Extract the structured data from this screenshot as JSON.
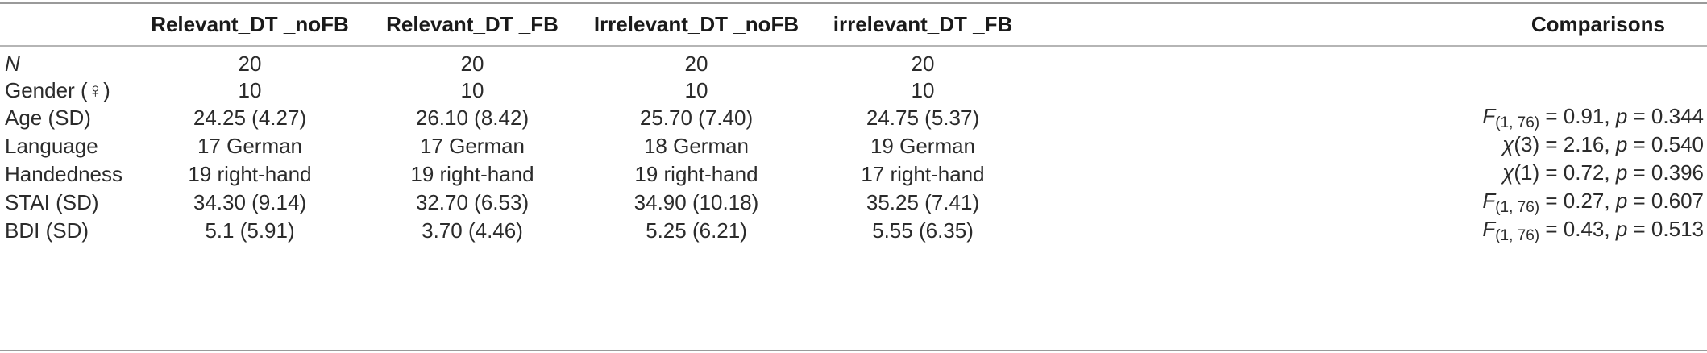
{
  "columns": [
    "",
    "Relevant_DT _noFB",
    "Relevant_DT _FB",
    "Irrelevant_DT _noFB",
    "irrelevant_DT _FB",
    "Comparisons"
  ],
  "rows": [
    {
      "label": "N",
      "values": [
        "20",
        "20",
        "20",
        "20"
      ],
      "comparison": null
    },
    {
      "label": "Gender (♀)",
      "values": [
        "10",
        "10",
        "10",
        "10"
      ],
      "comparison": null
    },
    {
      "label": "Age (SD)",
      "values": [
        "24.25 (4.27)",
        "26.10 (8.42)",
        "25.70 (7.40)",
        "24.75 (5.37)"
      ],
      "comparison": {
        "stat": "F",
        "sub": "(1, 76)",
        "value": " = 0.91, ",
        "p": "p",
        "pval": " = 0.344"
      }
    },
    {
      "label": "Language",
      "values": [
        "17 German",
        "17 German",
        "18 German",
        "19 German"
      ],
      "comparison": {
        "stat": "χ",
        "sub": "",
        "value": "(3) = 2.16, ",
        "p": "p",
        "pval": " = 0.540"
      }
    },
    {
      "label": "Handedness",
      "values": [
        "19 right-hand",
        "19 right-hand",
        "19 right-hand",
        "17 right-hand"
      ],
      "comparison": {
        "stat": "χ",
        "sub": "",
        "value": "(1) = 0.72, ",
        "p": "p",
        "pval": " = 0.396"
      }
    },
    {
      "label": "STAI (SD)",
      "values": [
        "34.30 (9.14)",
        "32.70 (6.53)",
        "34.90 (10.18)",
        "35.25 (7.41)"
      ],
      "comparison": {
        "stat": "F",
        "sub": "(1, 76)",
        "value": " = 0.27, ",
        "p": "p",
        "pval": " = 0.607"
      }
    },
    {
      "label": "BDI (SD)",
      "values": [
        "5.1 (5.91)",
        "3.70 (4.46)",
        "5.25 (6.21)",
        "5.55 (6.35)"
      ],
      "comparison": {
        "stat": "F",
        "sub": "(1, 76)",
        "value": " = 0.43, ",
        "p": "p",
        "pval": " = 0.513"
      }
    }
  ]
}
